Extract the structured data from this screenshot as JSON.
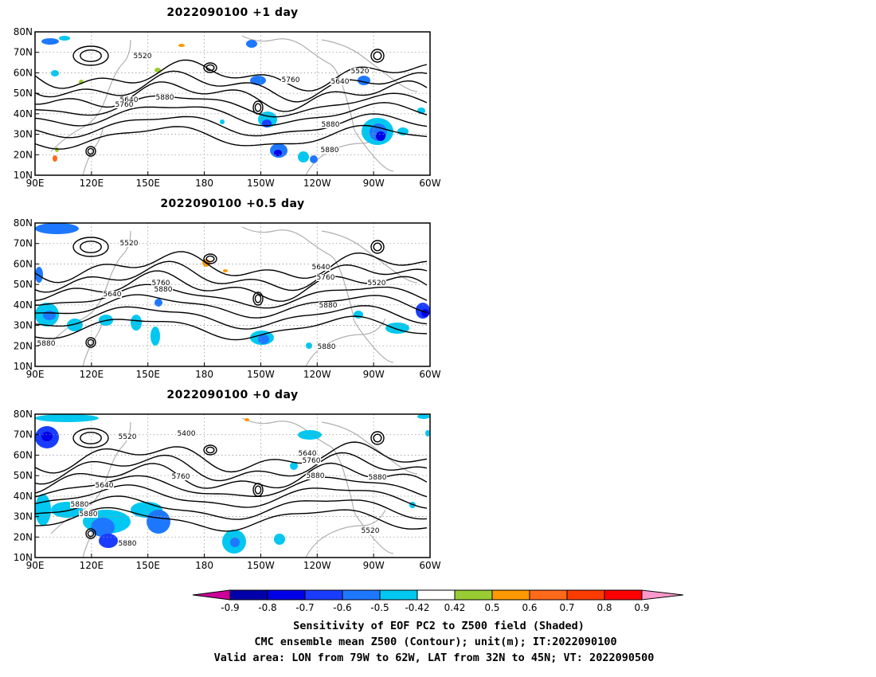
{
  "chart_data": [
    {
      "type": "heatmap",
      "title": "2022090100 +1 day",
      "x_ticks": [
        "90E",
        "120E",
        "150E",
        "180",
        "150W",
        "120W",
        "90W",
        "60W"
      ],
      "y_ticks": [
        "10N",
        "20N",
        "30N",
        "40N",
        "50N",
        "60N",
        "70N",
        "80N"
      ],
      "xlim_deg_east": [
        90,
        300
      ],
      "ylim_deg_north": [
        10,
        80
      ],
      "contour_labels": [
        "5520",
        "5640",
        "5760",
        "5880",
        "5760",
        "5640",
        "5520",
        "5880",
        "5880"
      ],
      "grid": "dotted"
    },
    {
      "type": "heatmap",
      "title": "2022090100 +0.5 day",
      "x_ticks": [
        "90E",
        "120E",
        "150E",
        "180",
        "150W",
        "120W",
        "90W",
        "60W"
      ],
      "y_ticks": [
        "10N",
        "20N",
        "30N",
        "40N",
        "50N",
        "60N",
        "70N",
        "80N"
      ],
      "xlim_deg_east": [
        90,
        300
      ],
      "ylim_deg_north": [
        10,
        80
      ],
      "contour_labels": [
        "5520",
        "5640",
        "5760",
        "5880",
        "5640",
        "5760",
        "5520",
        "5880",
        "5880",
        "5880"
      ],
      "grid": "dotted"
    },
    {
      "type": "heatmap",
      "title": "2022090100 +0 day",
      "x_ticks": [
        "90E",
        "120E",
        "150E",
        "180",
        "150W",
        "120W",
        "90W",
        "60W"
      ],
      "y_ticks": [
        "10N",
        "20N",
        "30N",
        "40N",
        "50N",
        "60N",
        "70N",
        "80N"
      ],
      "xlim_deg_east": [
        90,
        300
      ],
      "ylim_deg_north": [
        10,
        80
      ],
      "contour_labels": [
        "5520",
        "5400",
        "5640",
        "5760",
        "5880",
        "5640",
        "5760",
        "5880",
        "5520",
        "5880",
        "5880",
        "5880"
      ],
      "grid": "dotted"
    }
  ],
  "colorbar": {
    "ticks": [
      "-0.9",
      "-0.8",
      "-0.7",
      "-0.6",
      "-0.5",
      "-0.42",
      "0.42",
      "0.5",
      "0.6",
      "0.7",
      "0.8",
      "0.9"
    ],
    "colors": [
      "#0000aa",
      "#0000e6",
      "#1a3cff",
      "#1e78ff",
      "#00c8f0",
      "#ffffff",
      "#99cc33",
      "#ff9900",
      "#ff6a1a",
      "#ff3c00",
      "#ff0000"
    ],
    "low_extend_color": "#cc0099",
    "high_extend_color": "#ff99cc"
  },
  "caption": {
    "line1": "Sensitivity of EOF PC2 to Z500 field (Shaded)",
    "line2": "CMC ensemble mean Z500 (Contour); unit(m); IT:2022090100",
    "line3": "Valid area: LON from 79W to 62W, LAT from 32N to 45N; VT: 2022090500"
  }
}
